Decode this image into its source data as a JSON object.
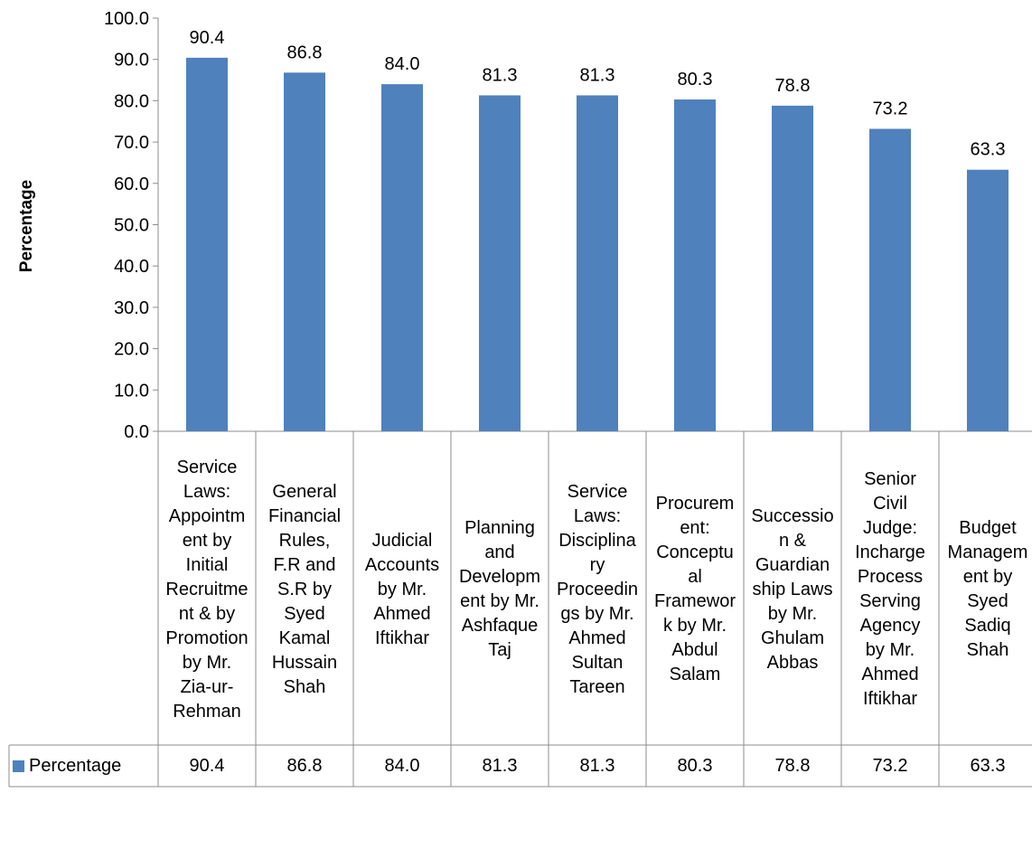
{
  "chart_data": {
    "type": "bar",
    "ylabel": "Percentage",
    "ylim": [
      0,
      100
    ],
    "yticks": [
      "0.0",
      "10.0",
      "20.0",
      "30.0",
      "40.0",
      "50.0",
      "60.0",
      "70.0",
      "80.0",
      "90.0",
      "100.0"
    ],
    "grid": false,
    "legend": "data-table-left",
    "bar_color": "#4f81bd",
    "categories": [
      "Service Laws: Appointment by Initial Recruitment & by Promotion by Mr. Zia-ur-Rehman",
      "General Financial Rules, F.R and S.R by Syed Kamal Hussain Shah",
      "Judicial Accounts by Mr. Ahmed Iftikhar",
      "Planning and Development by Mr. Ashfaque Taj",
      "Service Laws: Disciplinary Proceedings by Mr. Ahmed Sultan Tareen",
      "Procurement: Conceptual Framework by Mr. Abdul Salam",
      "Succession & Guardianship Laws by Mr. Ghulam Abbas",
      "Senior Civil Judge: Incharge Process Serving Agency by Mr. Ahmed Iftikhar",
      "Budget Management by Syed Sadiq Shah"
    ],
    "series": [
      {
        "name": "Percentage",
        "values": [
          90.4,
          86.8,
          84.0,
          81.3,
          81.3,
          80.3,
          78.8,
          73.2,
          63.3
        ],
        "labels": [
          "90.4",
          "86.8",
          "84.0",
          "81.3",
          "81.3",
          "80.3",
          "78.8",
          "73.2",
          "63.3"
        ]
      }
    ]
  }
}
